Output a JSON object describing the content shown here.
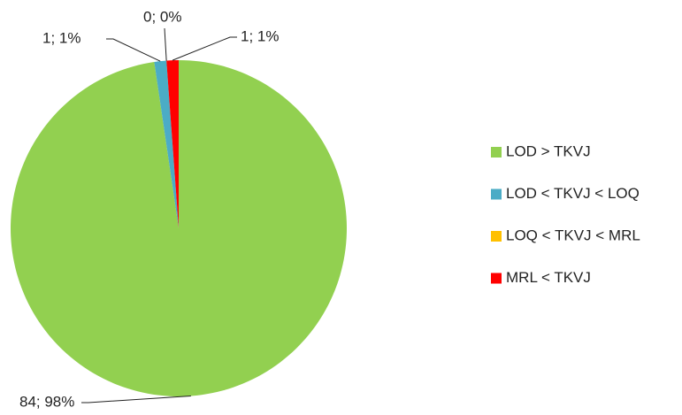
{
  "chart_data": {
    "type": "pie",
    "categories": [
      "LOD > TKVJ",
      "LOD < TKVJ < LOQ",
      "LOQ < TKVJ < MRL",
      "MRL < TKVJ"
    ],
    "values": [
      84,
      1,
      0,
      1
    ],
    "value_labels": [
      "84; 98%",
      "1; 1%",
      "0; 0%",
      "1; 1%"
    ],
    "colors": [
      "#92d050",
      "#4bacc6",
      "#ffc000",
      "#ff0000"
    ],
    "legend": "right"
  }
}
